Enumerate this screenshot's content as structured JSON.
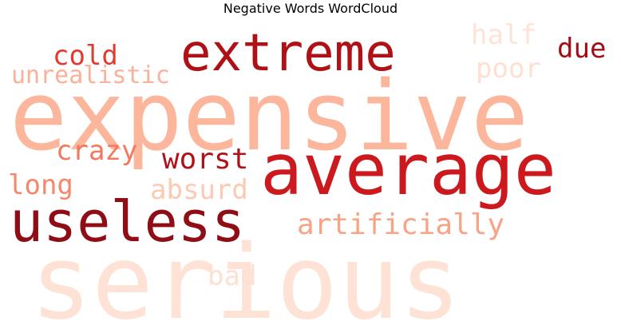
{
  "chart_data": {
    "type": "wordcloud",
    "title": "Negative Words WordCloud",
    "colormap": "Reds",
    "words": [
      {
        "text": "expensive",
        "weight": 1.0,
        "color": "#fcb69b"
      },
      {
        "text": "serious",
        "weight": 1.0,
        "color": "#fee2d5"
      },
      {
        "text": "average",
        "weight": 0.78,
        "color": "#cc191e"
      },
      {
        "text": "useless",
        "weight": 0.64,
        "color": "#8f0d15"
      },
      {
        "text": "extreme",
        "weight": 0.62,
        "color": "#af1117"
      },
      {
        "text": "artificially",
        "weight": 0.36,
        "color": "#f9a284"
      },
      {
        "text": "worst",
        "weight": 0.36,
        "color": "#b01217"
      },
      {
        "text": "absurd",
        "weight": 0.34,
        "color": "#fcc9b3"
      },
      {
        "text": "crazy",
        "weight": 0.34,
        "color": "#f4785d"
      },
      {
        "text": "cold",
        "weight": 0.34,
        "color": "#e33a2f"
      },
      {
        "text": "long",
        "weight": 0.34,
        "color": "#f6876a"
      },
      {
        "text": "due",
        "weight": 0.32,
        "color": "#a00f15"
      },
      {
        "text": "half",
        "weight": 0.3,
        "color": "#fee3d7"
      },
      {
        "text": "poor",
        "weight": 0.3,
        "color": "#fee0d2"
      },
      {
        "text": "unrealistic",
        "weight": 0.28,
        "color": "#fcb09a"
      },
      {
        "text": "bad",
        "weight": 0.3,
        "color": "#fee0d2"
      }
    ]
  }
}
